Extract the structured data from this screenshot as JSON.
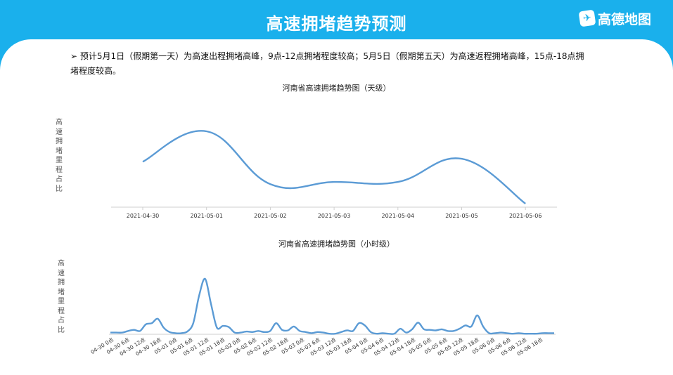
{
  "header": {
    "title": "高速拥堵趋势预测",
    "logo_text": "高德地图"
  },
  "description": "➢  预计5月1日（假期第一天）为高速出程拥堵高峰，9点-12点拥堵程度较高；5月5日（假期第五天）为高速返程拥堵高峰，15点-18点拥堵程度较高。",
  "colors": {
    "accent": "#1ab0ec",
    "line": "#5b9bd5"
  },
  "chart_data": [
    {
      "type": "line",
      "title": "河南省高速拥堵趋势图（天级）",
      "ylabel": "高速拥堵里程占比",
      "xlabel": "",
      "categories": [
        "2021-04-30",
        "2021-05-01",
        "2021-05-02",
        "2021-05-03",
        "2021-05-04",
        "2021-05-05",
        "2021-05-06"
      ],
      "values": [
        0.58,
        1.0,
        0.27,
        0.3,
        0.3,
        0.62,
        0.0
      ],
      "grid": false,
      "legend": "none"
    },
    {
      "type": "line",
      "title": "河南省高速拥堵趋势图（小时级）",
      "ylabel": "高速拥堵里程占比",
      "xlabel": "",
      "tick_labels": [
        "04-30 0点",
        "04-30 6点",
        "04-30 12点",
        "04-30 18点",
        "05-01 0点",
        "05-01 6点",
        "05-01 12点",
        "05-01 18点",
        "05-02 0点",
        "05-02 6点",
        "05-02 12点",
        "05-02 18点",
        "05-03 0点",
        "05-03 6点",
        "05-03 12点",
        "05-03 18点",
        "05-04 0点",
        "05-04 6点",
        "05-04 12点",
        "05-04 18点",
        "05-05 0点",
        "05-05 6点",
        "05-05 12点",
        "05-05 18点",
        "05-06 0点",
        "05-06 6点",
        "05-06 12点",
        "05-06 18点"
      ],
      "points": [
        [
          0,
          0.03
        ],
        [
          1,
          0.03
        ],
        [
          2,
          0.03
        ],
        [
          3,
          0.06
        ],
        [
          4,
          0.08
        ],
        [
          5,
          0.06
        ],
        [
          6,
          0.18
        ],
        [
          7,
          0.2
        ],
        [
          8,
          0.28
        ],
        [
          9,
          0.12
        ],
        [
          10,
          0.04
        ],
        [
          11,
          0.02
        ],
        [
          12,
          0.02
        ],
        [
          13,
          0.05
        ],
        [
          14,
          0.2
        ],
        [
          15,
          0.7
        ],
        [
          16,
          1.0
        ],
        [
          17,
          0.55
        ],
        [
          18,
          0.12
        ],
        [
          19,
          0.15
        ],
        [
          20,
          0.13
        ],
        [
          21,
          0.03
        ],
        [
          22,
          0.03
        ],
        [
          23,
          0.05
        ],
        [
          24,
          0.04
        ],
        [
          25,
          0.06
        ],
        [
          26,
          0.04
        ],
        [
          27,
          0.06
        ],
        [
          28,
          0.2
        ],
        [
          29,
          0.08
        ],
        [
          30,
          0.07
        ],
        [
          31,
          0.14
        ],
        [
          32,
          0.06
        ],
        [
          33,
          0.04
        ],
        [
          34,
          0.02
        ],
        [
          35,
          0.04
        ],
        [
          36,
          0.03
        ],
        [
          37,
          0.01
        ],
        [
          38,
          0.01
        ],
        [
          39,
          0.04
        ],
        [
          40,
          0.07
        ],
        [
          41,
          0.06
        ],
        [
          42,
          0.2
        ],
        [
          43,
          0.16
        ],
        [
          44,
          0.04
        ],
        [
          45,
          0.01
        ],
        [
          46,
          0.02
        ],
        [
          47,
          0.01
        ],
        [
          48,
          0.01
        ],
        [
          49,
          0.1
        ],
        [
          50,
          0.03
        ],
        [
          51,
          0.09
        ],
        [
          52,
          0.21
        ],
        [
          53,
          0.09
        ],
        [
          54,
          0.08
        ],
        [
          55,
          0.07
        ],
        [
          56,
          0.09
        ],
        [
          57,
          0.06
        ],
        [
          58,
          0.06
        ],
        [
          59,
          0.1
        ],
        [
          60,
          0.16
        ],
        [
          61,
          0.14
        ],
        [
          62,
          0.34
        ],
        [
          63,
          0.14
        ],
        [
          64,
          0.02
        ],
        [
          65,
          0.02
        ],
        [
          66,
          0.03
        ],
        [
          67,
          0.02
        ],
        [
          68,
          0.01
        ],
        [
          69,
          0.02
        ],
        [
          70,
          0.01
        ],
        [
          71,
          0.01
        ],
        [
          72,
          0.01
        ],
        [
          73,
          0.02
        ],
        [
          74,
          0.02
        ],
        [
          75,
          0.02
        ]
      ],
      "grid": false,
      "legend": "none"
    }
  ]
}
